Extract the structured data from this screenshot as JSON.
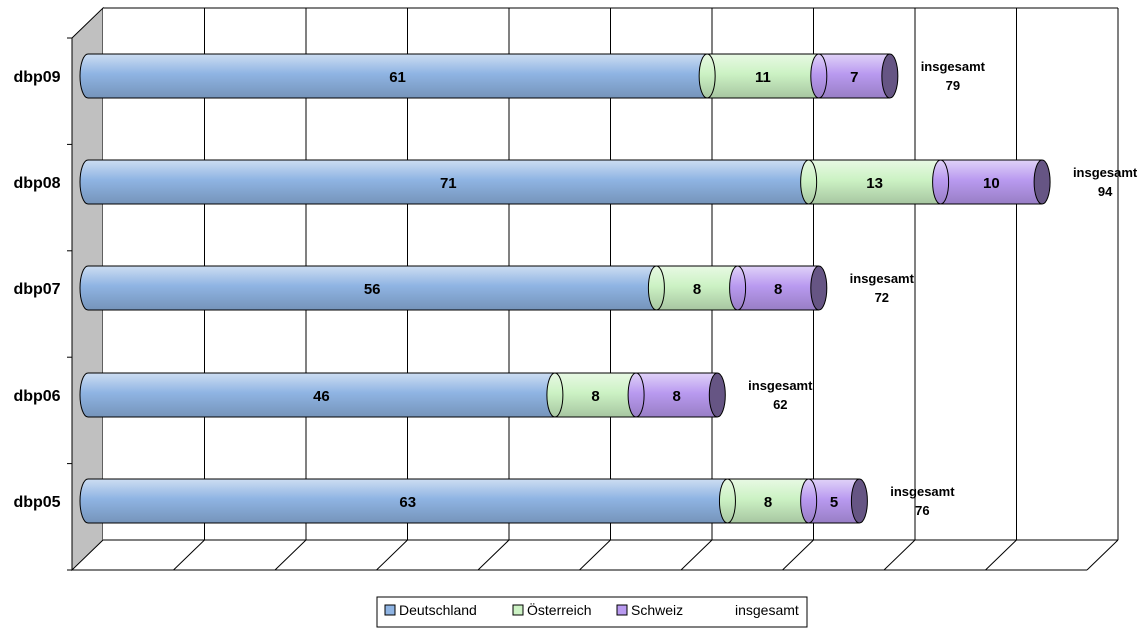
{
  "chart_data": {
    "type": "bar",
    "orientation": "horizontal",
    "stacked": true,
    "categories": [
      "dbp09",
      "dbp08",
      "dbp07",
      "dbp06",
      "dbp05"
    ],
    "series": [
      {
        "name": "Deutschland",
        "values": [
          61,
          71,
          56,
          46,
          63
        ],
        "color": "#8FB4E3"
      },
      {
        "name": "Österreich",
        "values": [
          11,
          13,
          8,
          8,
          8
        ],
        "color": "#CCF2C4"
      },
      {
        "name": "Schweiz",
        "values": [
          7,
          10,
          8,
          8,
          5
        ],
        "color": "#B99AF0"
      }
    ],
    "totals": {
      "label": "insgesamt",
      "values": [
        79,
        94,
        72,
        62,
        76
      ]
    },
    "xlim": [
      0,
      100
    ],
    "grid": true,
    "legend": {
      "position": "bottom",
      "items": [
        "Deutschland",
        "Österreich",
        "Schweiz",
        "insgesamt"
      ]
    }
  }
}
